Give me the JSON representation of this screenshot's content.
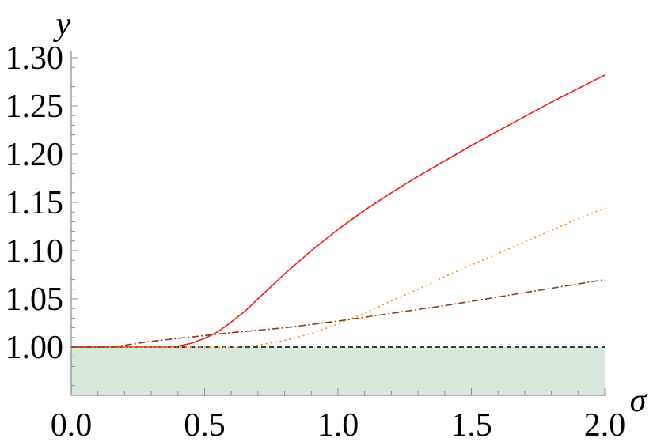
{
  "chart_data": {
    "type": "line",
    "xlabel": "σ",
    "ylabel": "y",
    "xlim": [
      0.0,
      2.0
    ],
    "ylim": [
      0.95,
      1.3
    ],
    "grid": false,
    "x_ticks": [
      0.0,
      0.5,
      1.0,
      1.5,
      2.0
    ],
    "x_tick_labels": [
      "0.0",
      "0.5",
      "1.0",
      "1.5",
      "2.0"
    ],
    "y_ticks": [
      1.0,
      1.05,
      1.1,
      1.15,
      1.2,
      1.25,
      1.3
    ],
    "y_tick_labels": [
      "1.00",
      "1.05",
      "1.10",
      "1.15",
      "1.20",
      "1.25",
      "1.30"
    ],
    "shaded_region": {
      "y_from": 0.95,
      "y_to": 1.0,
      "color": "#d5e8d9"
    },
    "reference_line": {
      "y": 1.0,
      "style": "dashed",
      "color": "#000000"
    },
    "series": [
      {
        "style": "solid",
        "color": "#e8211f",
        "x": [
          0.0,
          0.1,
          0.2,
          0.3,
          0.35,
          0.4,
          0.45,
          0.5,
          0.55,
          0.6,
          0.65,
          0.7,
          0.8,
          0.9,
          1.0,
          1.1,
          1.2,
          1.3,
          1.4,
          1.5,
          1.6,
          1.7,
          1.8,
          1.9,
          2.0
        ],
        "values": [
          1.0,
          1.0,
          1.0,
          1.0,
          1.0,
          1.001,
          1.004,
          1.009,
          1.016,
          1.026,
          1.037,
          1.05,
          1.076,
          1.1,
          1.122,
          1.142,
          1.16,
          1.177,
          1.193,
          1.209,
          1.224,
          1.239,
          1.254,
          1.268,
          1.282
        ]
      },
      {
        "style": "dotted",
        "color": "#f28c1c",
        "x": [
          0.0,
          0.2,
          0.4,
          0.5,
          0.6,
          0.7,
          0.8,
          0.9,
          1.0,
          1.1,
          1.2,
          1.3,
          1.4,
          1.5,
          1.6,
          1.7,
          1.8,
          1.9,
          2.0
        ],
        "values": [
          1.0,
          1.0,
          1.0,
          1.0,
          1.0,
          1.002,
          1.007,
          1.014,
          1.024,
          1.035,
          1.048,
          1.06,
          1.073,
          1.085,
          1.097,
          1.109,
          1.121,
          1.133,
          1.144
        ]
      },
      {
        "style": "dashdot",
        "color": "#8c3f17",
        "x": [
          0.0,
          0.1,
          0.15,
          0.2,
          0.3,
          0.4,
          0.5,
          0.6,
          0.8,
          1.0,
          1.2,
          1.4,
          1.6,
          1.8,
          2.0
        ],
        "values": [
          1.0,
          1.0,
          1.0,
          1.002,
          1.006,
          1.009,
          1.012,
          1.015,
          1.02,
          1.027,
          1.035,
          1.043,
          1.052,
          1.061,
          1.07
        ]
      }
    ]
  }
}
